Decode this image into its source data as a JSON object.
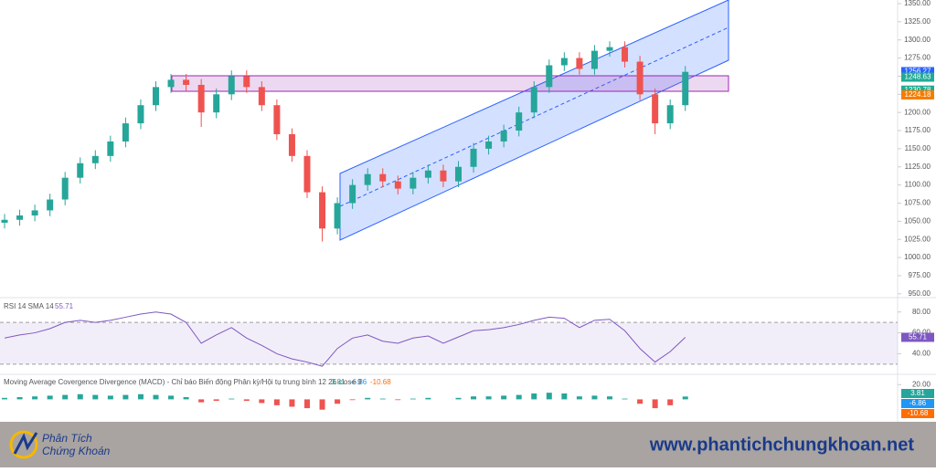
{
  "chart_data": {
    "type": "candlestick",
    "open": [
      1048,
      1052,
      1058,
      1065,
      1080,
      1110,
      1130,
      1140,
      1160,
      1185,
      1210,
      1235,
      1245,
      1238,
      1200,
      1225,
      1250,
      1235,
      1210,
      1170,
      1140,
      1090,
      1040,
      1075,
      1100,
      1115,
      1105,
      1095,
      1110,
      1120,
      1105,
      1125,
      1150,
      1160,
      1175,
      1200,
      1235,
      1265,
      1275,
      1260,
      1285,
      1290,
      1270,
      1225,
      1185,
      1210
    ],
    "high": [
      1060,
      1066,
      1073,
      1088,
      1118,
      1138,
      1148,
      1168,
      1193,
      1218,
      1243,
      1253,
      1253,
      1246,
      1233,
      1258,
      1258,
      1243,
      1218,
      1178,
      1148,
      1098,
      1083,
      1108,
      1123,
      1123,
      1113,
      1118,
      1128,
      1128,
      1133,
      1158,
      1168,
      1183,
      1208,
      1243,
      1273,
      1283,
      1283,
      1293,
      1298,
      1298,
      1278,
      1233,
      1218,
      1264
    ],
    "low": [
      1040,
      1044,
      1050,
      1057,
      1072,
      1102,
      1122,
      1132,
      1152,
      1177,
      1202,
      1227,
      1230,
      1180,
      1192,
      1217,
      1227,
      1202,
      1162,
      1132,
      1082,
      1022,
      1032,
      1067,
      1092,
      1097,
      1087,
      1087,
      1102,
      1097,
      1097,
      1117,
      1142,
      1152,
      1167,
      1192,
      1227,
      1257,
      1252,
      1252,
      1277,
      1262,
      1217,
      1170,
      1177,
      1202
    ],
    "close": [
      1052,
      1058,
      1065,
      1080,
      1110,
      1130,
      1140,
      1160,
      1185,
      1210,
      1235,
      1245,
      1238,
      1200,
      1225,
      1250,
      1235,
      1210,
      1170,
      1140,
      1090,
      1040,
      1075,
      1100,
      1115,
      1105,
      1095,
      1110,
      1120,
      1105,
      1125,
      1150,
      1160,
      1175,
      1200,
      1235,
      1265,
      1275,
      1260,
      1285,
      1290,
      1270,
      1225,
      1185,
      1210,
      1256
    ],
    "up_color": "#26a69a",
    "down_color": "#ef5350",
    "ylim": [
      946,
      1355
    ],
    "yticks": [
      {
        "value": 950,
        "label": "950.00"
      },
      {
        "value": 975,
        "label": "975.00"
      },
      {
        "value": 1000,
        "label": "1000.00"
      },
      {
        "value": 1025,
        "label": "1025.00"
      },
      {
        "value": 1050,
        "label": "1050.00"
      },
      {
        "value": 1075,
        "label": "1075.00"
      },
      {
        "value": 1100,
        "label": "1100.00"
      },
      {
        "value": 1125,
        "label": "1125.00"
      },
      {
        "value": 1150,
        "label": "1150.00"
      },
      {
        "value": 1175,
        "label": "1175.00"
      },
      {
        "value": 1200,
        "label": "1200.00"
      },
      {
        "value": 1225,
        "label": "1225.00"
      },
      {
        "value": 1250,
        "label": "1250.00"
      },
      {
        "value": 1275,
        "label": "1275.00"
      },
      {
        "value": 1300,
        "label": "1300.00"
      },
      {
        "value": 1325,
        "label": "1325.00"
      },
      {
        "value": 1350,
        "label": "1350.00"
      }
    ],
    "price_labels": [
      {
        "value": 1256.27,
        "color": "#2962ff"
      },
      {
        "value": 1248.63,
        "color": "#22ab94"
      },
      {
        "value": 1230.78,
        "color": "#22ab94"
      },
      {
        "value": 1224.18,
        "color": "#f57c00"
      }
    ],
    "rsi": {
      "title": "RSI 14 SMA 14",
      "color": "#7e57c2",
      "band": [
        30,
        70
      ],
      "ylim": [
        22,
        92
      ],
      "yticks": [
        {
          "value": 40,
          "label": "40.00"
        },
        {
          "value": 60,
          "label": "60.00"
        },
        {
          "value": 80,
          "label": "80.00"
        }
      ],
      "values": [
        55,
        58,
        60,
        64,
        70,
        72,
        70,
        72,
        75,
        78,
        80,
        78,
        70,
        50,
        58,
        65,
        55,
        48,
        40,
        35,
        32,
        28,
        45,
        55,
        58,
        52,
        50,
        55,
        57,
        50,
        56,
        62,
        63,
        65,
        68,
        72,
        75,
        74,
        65,
        72,
        73,
        62,
        45,
        32,
        42,
        55.71
      ]
    },
    "macd": {
      "title": "Moving Average Covergence Divergence (MACD) - Chỉ báo Biến động Phân kỳ/Hội tụ trung bình 12 26 close 9",
      "ylim": [
        -28,
        34
      ],
      "yticks": [
        {
          "value": 20,
          "label": "20.00"
        }
      ],
      "histogram": [
        2,
        3,
        4,
        5,
        6,
        7,
        6,
        5,
        6,
        7,
        6,
        5,
        3,
        -4,
        -2,
        1,
        -2,
        -5,
        -8,
        -10,
        -12,
        -14,
        -6,
        -1,
        2,
        1,
        -1,
        1,
        2,
        0,
        2,
        4,
        4,
        5,
        6,
        8,
        9,
        8,
        4,
        5,
        4,
        1,
        -6,
        -12,
        -8,
        3.81
      ],
      "pos_color": "#26a69a",
      "neg_color": "#ef5350",
      "macd_value": -6.86,
      "macd_color": "#2196f3",
      "signal_value": -10.68,
      "signal_color": "#ff6d00"
    }
  },
  "footer": {
    "logo_line1": "Phân Tích",
    "logo_line2": "Chứng Khoán",
    "url": "www.phantichchungkhoan.net"
  }
}
